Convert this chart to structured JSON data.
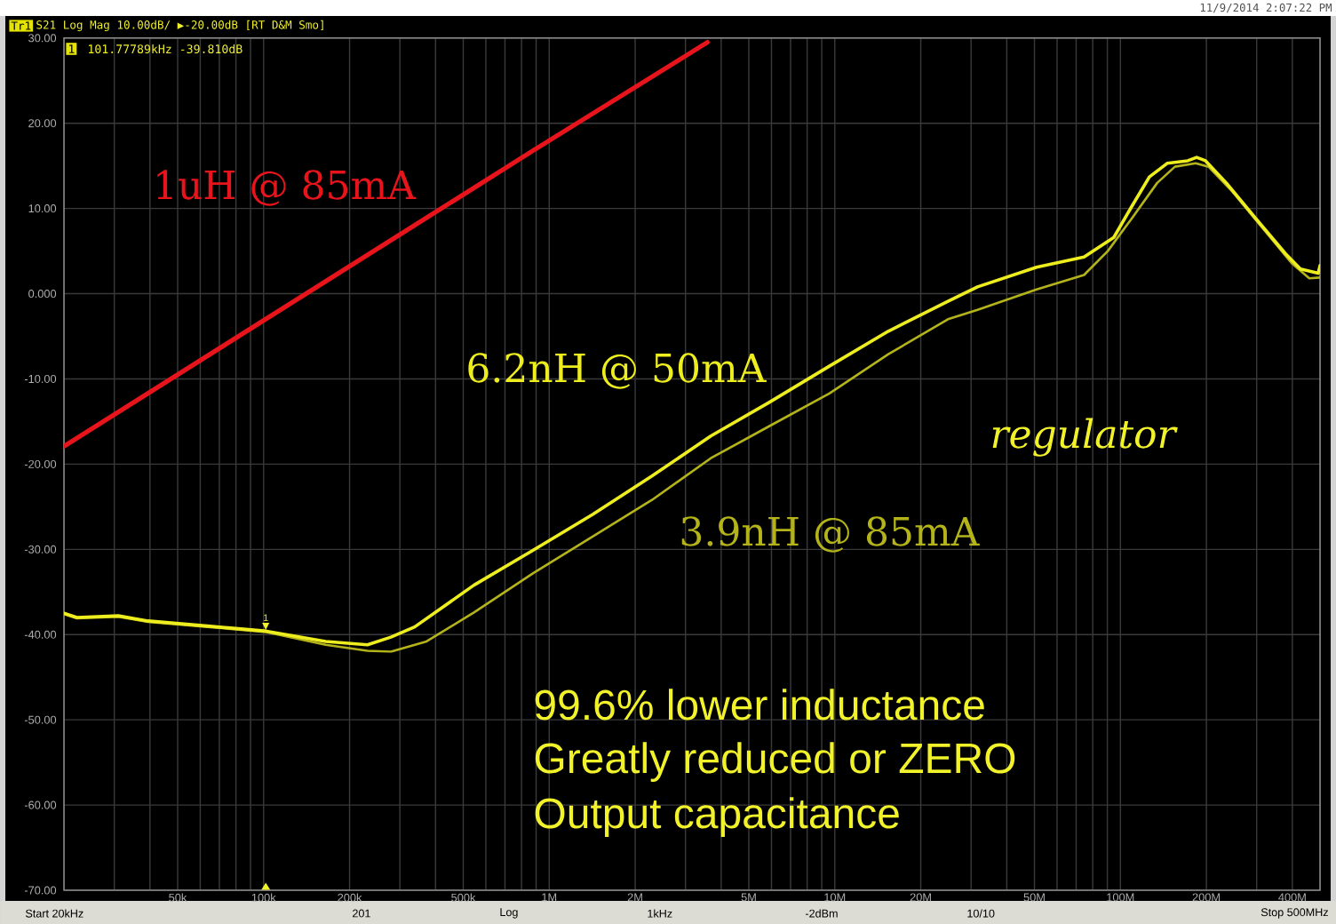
{
  "chart_data": {
    "type": "line",
    "log": "x",
    "grid": true,
    "xlim": [
      20000,
      500000000
    ],
    "ylim": [
      -70,
      30
    ],
    "xticks": [
      {
        "value": 30000,
        "label": null
      },
      {
        "value": 40000,
        "label": null
      },
      {
        "value": 50000,
        "label": "50k"
      },
      {
        "value": 60000,
        "label": null
      },
      {
        "value": 70000,
        "label": null
      },
      {
        "value": 80000,
        "label": null
      },
      {
        "value": 90000,
        "label": null
      },
      {
        "value": 100000,
        "label": "100k"
      },
      {
        "value": 200000,
        "label": "200k"
      },
      {
        "value": 300000,
        "label": null
      },
      {
        "value": 400000,
        "label": null
      },
      {
        "value": 500000,
        "label": "500k"
      },
      {
        "value": 600000,
        "label": null
      },
      {
        "value": 700000,
        "label": null
      },
      {
        "value": 800000,
        "label": null
      },
      {
        "value": 900000,
        "label": null
      },
      {
        "value": 1000000,
        "label": "1M"
      },
      {
        "value": 2000000,
        "label": "2M"
      },
      {
        "value": 3000000,
        "label": null
      },
      {
        "value": 4000000,
        "label": null
      },
      {
        "value": 5000000,
        "label": "5M"
      },
      {
        "value": 6000000,
        "label": null
      },
      {
        "value": 7000000,
        "label": null
      },
      {
        "value": 8000000,
        "label": null
      },
      {
        "value": 9000000,
        "label": null
      },
      {
        "value": 10000000,
        "label": "10M"
      },
      {
        "value": 20000000,
        "label": "20M"
      },
      {
        "value": 30000000,
        "label": null
      },
      {
        "value": 40000000,
        "label": null
      },
      {
        "value": 50000000,
        "label": "50M"
      },
      {
        "value": 60000000,
        "label": null
      },
      {
        "value": 70000000,
        "label": null
      },
      {
        "value": 80000000,
        "label": null
      },
      {
        "value": 90000000,
        "label": null
      },
      {
        "value": 100000000,
        "label": "100M"
      },
      {
        "value": 200000000,
        "label": "200M"
      },
      {
        "value": 300000000,
        "label": null
      },
      {
        "value": 400000000,
        "label": "400M"
      }
    ],
    "yticks": [
      {
        "value": -70,
        "label": "-70.00"
      },
      {
        "value": -60,
        "label": "-60.00"
      },
      {
        "value": -50,
        "label": "-50.00"
      },
      {
        "value": -40,
        "label": "-40.00"
      },
      {
        "value": -30,
        "label": "-30.00"
      },
      {
        "value": -20,
        "label": "-20.00"
      },
      {
        "value": -10,
        "label": "-10.00"
      },
      {
        "value": 0,
        "label": "0.000"
      },
      {
        "value": 10,
        "label": "10.00"
      },
      {
        "value": 20,
        "label": "20.00"
      },
      {
        "value": 30,
        "label": "30.00"
      }
    ],
    "series": [
      {
        "name": "1uH @ 85mA",
        "color": "#e8141c",
        "x": [
          20000,
          879000,
          3580000
        ],
        "values": [
          -17.9,
          16.8,
          29.5
        ]
      },
      {
        "name": "3.9nH @ 85mA",
        "color": "#b4b41a",
        "x": [
          20000,
          22200,
          31000,
          39400,
          63600,
          102400,
          165000,
          231000,
          279000,
          372000,
          545000,
          879000,
          1420000,
          2290000,
          3680000,
          5930000,
          9570000,
          15400000,
          24900000,
          31600000,
          50900000,
          74600000,
          90300000,
          109400000,
          134500000,
          155200000,
          183600000,
          203500000,
          246200000,
          312800000,
          397200000,
          458500000,
          500000000
        ],
        "values": [
          -37.6,
          -38.1,
          -37.9,
          -38.5,
          -39.1,
          -39.7,
          -41.2,
          -41.9,
          -42.0,
          -40.8,
          -37.4,
          -32.8,
          -28.5,
          -24.2,
          -19.3,
          -15.5,
          -11.7,
          -7.1,
          -3.0,
          -1.9,
          0.5,
          2.2,
          5.0,
          8.8,
          13.0,
          14.9,
          15.3,
          14.9,
          12.0,
          7.8,
          3.6,
          1.8,
          1.9
        ]
      },
      {
        "name": "6.2nH @ 50mA",
        "color": "#eeee1e",
        "x": [
          20000,
          22200,
          31000,
          39400,
          63600,
          102400,
          165000,
          231000,
          279000,
          338000,
          545000,
          879000,
          1420000,
          2290000,
          3680000,
          5930000,
          9570000,
          15400000,
          24900000,
          31600000,
          50900000,
          74600000,
          94800000,
          109400000,
          126300000,
          145800000,
          172100000,
          184900000,
          198600000,
          234800000,
          298300000,
          378400000,
          426900000,
          492600000,
          500000000
        ],
        "values": [
          -37.5,
          -38.0,
          -37.8,
          -38.4,
          -39.0,
          -39.6,
          -40.8,
          -41.2,
          -40.3,
          -39.1,
          -34.2,
          -30.1,
          -25.9,
          -21.4,
          -16.7,
          -12.7,
          -8.5,
          -4.4,
          -0.9,
          0.8,
          3.1,
          4.3,
          6.6,
          10.2,
          13.7,
          15.3,
          15.6,
          16.0,
          15.6,
          13.0,
          8.8,
          4.7,
          2.9,
          2.4,
          3.3
        ]
      }
    ],
    "annotations": [
      "Tr1",
      "S21 Log Mag 10.00dB/ ▶-20.00dB [RT D&M Smo]",
      {
        "text": "1",
        "x": 101777.89,
        "y": -39.81
      },
      "101.77789kHz -39.810dB",
      "11/9/2014 2:07:22 PM",
      "regulator",
      "99.6% lower inductance",
      "Greatly reduced or ZERO",
      "Output capacitance",
      "Start 20kHz",
      "201",
      "Log",
      "1kHz",
      "-2dBm",
      "10/10",
      "Stop 500MHz"
    ]
  }
}
